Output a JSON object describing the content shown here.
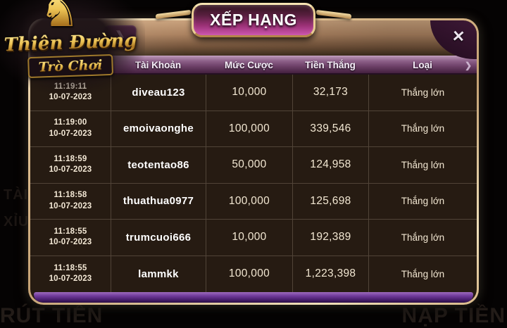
{
  "logo": {
    "horse_icon": "♞",
    "line1": "Thiên Đường",
    "line2": "Trò Chơi"
  },
  "modal": {
    "title": "XẾP HẠNG",
    "close_icon": "✕",
    "back_icon": "❯",
    "header_tip_icon": "❯"
  },
  "table": {
    "columns": [
      "Tài Khoản",
      "Mức Cược",
      "Tiền Thắng",
      "Loại"
    ],
    "rows": [
      {
        "time": "11:19:11",
        "date": "10-07-2023",
        "account": "diveau123",
        "bet": "10,000",
        "win": "32,173",
        "type": "Thắng lớn"
      },
      {
        "time": "11:19:00",
        "date": "10-07-2023",
        "account": "emoivaonghe",
        "bet": "100,000",
        "win": "339,546",
        "type": "Thắng lớn"
      },
      {
        "time": "11:18:59",
        "date": "10-07-2023",
        "account": "teotentao86",
        "bet": "50,000",
        "win": "124,958",
        "type": "Thắng lớn"
      },
      {
        "time": "11:18:58",
        "date": "10-07-2023",
        "account": "thuathua0977",
        "bet": "100,000",
        "win": "125,698",
        "type": "Thắng lớn"
      },
      {
        "time": "11:18:55",
        "date": "10-07-2023",
        "account": "trumcuoi666",
        "bet": "10,000",
        "win": "192,389",
        "type": "Thắng lớn"
      },
      {
        "time": "11:18:55",
        "date": "10-07-2023",
        "account": "lammkk",
        "bet": "100,000",
        "win": "1,223,398",
        "type": "Thắng lớn"
      }
    ]
  },
  "background": {
    "bottom_left": "RÚT TIỀN",
    "bottom_right": "NẠP TIỀN",
    "left_edge_line1": "TÀI",
    "left_edge_line2": "XỈU"
  },
  "colors": {
    "panel_border_gold": "#e9cd92",
    "panel_top_tan": "#c9a27d",
    "table_background": "#261b12",
    "header_purple": "#6e4169",
    "banner_magenta": "#cd56af",
    "footer_purple": "#713c9c",
    "text_cream": "#f2e7d2",
    "logo_gold": "#edc455"
  }
}
